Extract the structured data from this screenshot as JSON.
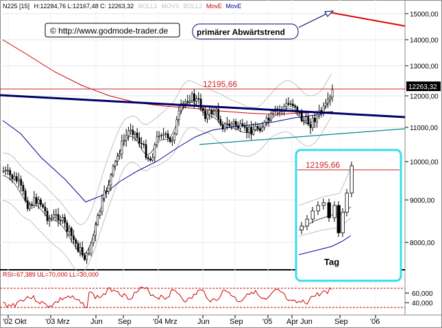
{
  "header": {
    "symbol": "N225 [15]",
    "ohlc": "H:12284,76 L:12167,48 C: 12263,32",
    "legend": [
      {
        "label": "BOLL1",
        "color": "#c0c0c0"
      },
      {
        "label": "MOVS",
        "color": "#c0c0c0"
      },
      {
        "label": "BOLL2",
        "color": "#c0c0c0"
      },
      {
        "label": "MovE",
        "color": "#cc0000"
      },
      {
        "label": "MovE",
        "color": "#000099"
      }
    ]
  },
  "copyright": "© http://www.godmode-trader.de",
  "trend_label": "primärer Abwärtstrend",
  "resistance_label": "12195,66",
  "last_price": "12263,32",
  "inset": {
    "resistance_label": "12195,66",
    "period_label": "Tag",
    "frame_color": "#33ddee"
  },
  "rsi": {
    "label": "RSI=67,389 UL=70,000 LL=30,000",
    "upper": 70,
    "lower": 30,
    "ticks": [
      "60,000",
      "40,000"
    ]
  },
  "chart_data": {
    "type": "candlestick",
    "y_ticks": [
      "15000,00",
      "14000,00",
      "13000,00",
      "12000,00",
      "11000,00",
      "10000,00",
      "9000,00",
      "8000,00"
    ],
    "x_ticks": [
      "'02 Okt",
      "'03 Mrz",
      "Jun",
      "Sep",
      "'04 Mrz",
      "Jun",
      "Sep",
      "'05",
      "Apr Jun",
      "Sep",
      "'06"
    ],
    "resistance": 12195.66,
    "last_close": 12263.32,
    "colors": {
      "resistance": "#cc2222",
      "downtrend": "#000066",
      "support": "#008888",
      "mov_red": "#cc0000",
      "mov_blue": "#000099",
      "bollinger": "#c0c0c0"
    }
  }
}
